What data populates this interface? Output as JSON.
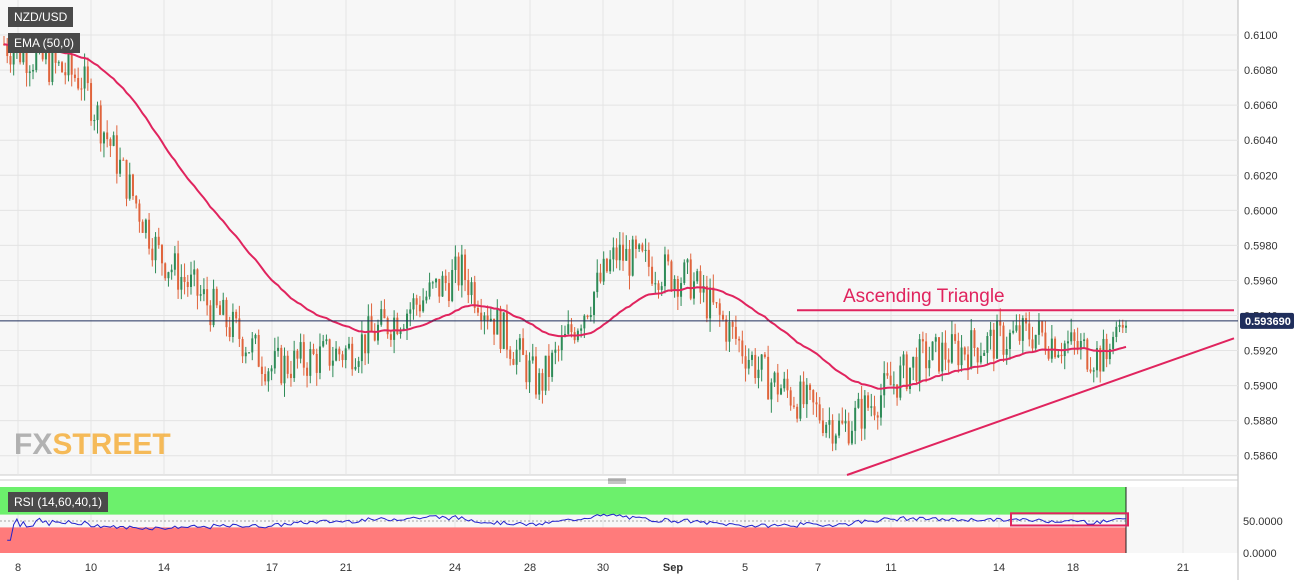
{
  "symbol_label": "NZD/USD",
  "ema_label": "EMA (50,0)",
  "rsi_label": "RSI (14,60,40,1)",
  "watermark": {
    "fx": "FX",
    "street": "STREET"
  },
  "annotation": "Ascending Triangle",
  "current_price_label": "0.593690",
  "colors": {
    "up": "#2e8b57",
    "down": "#e0643c",
    "ema": "#e0245e",
    "pattern": "#e0245e",
    "price_line": "#1f2e5c",
    "rsi_line": "#2222cc",
    "rsi_upper_zone": "#6cf06c",
    "rsi_lower_zone": "#ff7b7b"
  },
  "chart_data": [
    {
      "type": "candlestick",
      "name": "NZD/USD",
      "xlabel": "",
      "ylabel": "",
      "x_ticks": [
        "8",
        "10",
        "14",
        "17",
        "21",
        "24",
        "28",
        "30",
        "Sep",
        "5",
        "7",
        "11",
        "14",
        "18",
        "21"
      ],
      "y_ticks": [
        "0.6100",
        "0.6080",
        "0.6060",
        "0.6040",
        "0.6020",
        "0.6000",
        "0.5980",
        "0.5960",
        "0.5940",
        "0.5920",
        "0.5900",
        "0.5880",
        "0.5860"
      ],
      "ylim": [
        0.5849,
        0.612
      ],
      "current_price": 0.59369,
      "overlays": [
        {
          "name": "EMA (50,0)",
          "kind": "ema",
          "period": 50
        },
        {
          "name": "Ascending Triangle",
          "kind": "resistance",
          "value": 0.5943
        },
        {
          "name": "Ascending Triangle",
          "kind": "support",
          "from": 0.5849,
          "to": 0.5927
        }
      ],
      "key_points": [
        {
          "label": "8",
          "close": 0.6095
        },
        {
          "label": "10",
          "close": 0.6075
        },
        {
          "label": "14",
          "close": 0.5975
        },
        {
          "label": "17",
          "close": 0.591
        },
        {
          "label": "21",
          "close": 0.592
        },
        {
          "label": "24",
          "close": 0.5965
        },
        {
          "label": "28",
          "close": 0.59
        },
        {
          "label": "30",
          "close": 0.5975
        },
        {
          "label": "Sep",
          "close": 0.596
        },
        {
          "label": "5",
          "close": 0.5905
        },
        {
          "label": "7",
          "close": 0.5875
        },
        {
          "label": "11",
          "close": 0.5915
        },
        {
          "label": "14",
          "close": 0.593
        },
        {
          "label": "18",
          "close": 0.5915
        }
      ]
    },
    {
      "type": "line",
      "name": "RSI (14,60,40,1)",
      "y_ticks": [
        "50.0000",
        "0.0000"
      ],
      "ylim": [
        0,
        100
      ],
      "upper_level": 60,
      "lower_level": 40,
      "last_value": 58
    }
  ]
}
